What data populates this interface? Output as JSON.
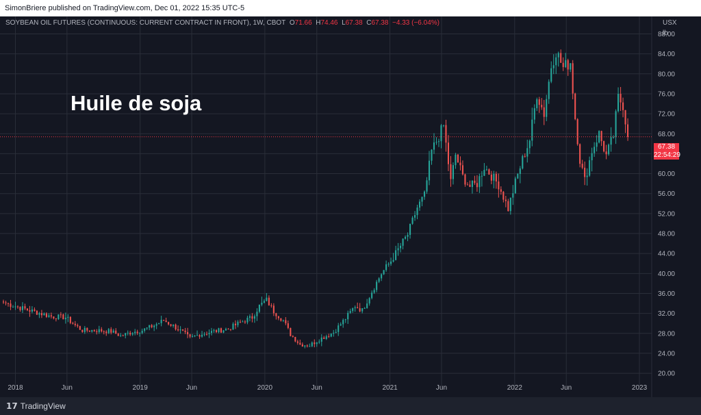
{
  "header": {
    "published": "SimonBriere published on TradingView.com, Dec 01, 2022 15:35 UTC-5"
  },
  "legend": {
    "symbol": "SOYBEAN OIL FUTURES (CONTINUOUS: CURRENT CONTRACT IN FRONT), 1W, CBOT",
    "o_label": "O",
    "o_value": "71.66",
    "h_label": "H",
    "h_value": "74.46",
    "l_label": "L",
    "l_value": "67.38",
    "c_label": "C",
    "c_value": "67.38",
    "change": "−4.33 (−6.04%)"
  },
  "annotation": "Huile de soja",
  "axis_units": {
    "currency": "USX",
    "unit": "lb"
  },
  "last_price": {
    "value": "67.38",
    "countdown": "22:54:29"
  },
  "footer": {
    "brand": "TradingView"
  },
  "colors": {
    "up": "#26a69a",
    "down": "#ef5350",
    "price_line": "#f23645",
    "background": "#141722",
    "grid": "#2a2e39"
  },
  "chart_data": {
    "type": "candlestick",
    "interval": "1W",
    "ylim": [
      18.5,
      91.5
    ],
    "y_ticks": [
      20,
      24,
      28,
      32,
      36,
      40,
      44,
      48,
      52,
      56,
      60,
      64,
      68,
      72,
      76,
      80,
      84,
      88
    ],
    "y_tick_labels": [
      "20.00",
      "24.00",
      "28.00",
      "32.00",
      "36.00",
      "40.00",
      "44.00",
      "48.00",
      "52.00",
      "56.00",
      "60.00",
      "64.00",
      "68.00",
      "72.00",
      "76.00",
      "80.00",
      "84.00",
      "88.00"
    ],
    "x_ticks": [
      "2018-01-01",
      "2018-06-01",
      "2019-01-01",
      "2019-06-01",
      "2020-01-01",
      "2020-06-01",
      "2021-01-01",
      "2021-06-01",
      "2022-01-01",
      "2022-06-01",
      "2023-01-01"
    ],
    "x_tick_labels": [
      "2018",
      "Jun",
      "2019",
      "Jun",
      "2020",
      "Jun",
      "2021",
      "Jun",
      "2022",
      "Jun",
      "2023"
    ],
    "xlim": [
      "2017-11-27",
      "2023-02-06"
    ],
    "last_close": 67.38,
    "anchors": [
      [
        "2017-11-27",
        34.2
      ],
      [
        "2017-12-25",
        33.6
      ],
      [
        "2018-01-22",
        33.0
      ],
      [
        "2018-03-05",
        32.2
      ],
      [
        "2018-04-16",
        31.4
      ],
      [
        "2018-05-28",
        31.2
      ],
      [
        "2018-06-25",
        29.6
      ],
      [
        "2018-07-16",
        28.6
      ],
      [
        "2018-08-27",
        28.6
      ],
      [
        "2018-10-08",
        28.4
      ],
      [
        "2018-11-05",
        27.5
      ],
      [
        "2018-12-10",
        28.3
      ],
      [
        "2019-01-07",
        28.6
      ],
      [
        "2019-02-11",
        29.6
      ],
      [
        "2019-03-11",
        30.6
      ],
      [
        "2019-04-08",
        29.5
      ],
      [
        "2019-05-06",
        28.2
      ],
      [
        "2019-05-27",
        27.0
      ],
      [
        "2019-06-24",
        27.8
      ],
      [
        "2019-08-05",
        28.4
      ],
      [
        "2019-09-16",
        28.9
      ],
      [
        "2019-10-21",
        30.2
      ],
      [
        "2019-11-25",
        31.2
      ],
      [
        "2019-12-16",
        33.5
      ],
      [
        "2020-01-06",
        34.7
      ],
      [
        "2020-01-27",
        32.4
      ],
      [
        "2020-02-24",
        30.6
      ],
      [
        "2020-03-16",
        27.8
      ],
      [
        "2020-04-13",
        25.8
      ],
      [
        "2020-05-11",
        25.6
      ],
      [
        "2020-06-08",
        26.8
      ],
      [
        "2020-07-20",
        28.2
      ],
      [
        "2020-08-24",
        31.0
      ],
      [
        "2020-09-21",
        33.5
      ],
      [
        "2020-10-12",
        32.6
      ],
      [
        "2020-11-09",
        36.4
      ],
      [
        "2020-12-07",
        40.0
      ],
      [
        "2021-01-04",
        42.5
      ],
      [
        "2021-01-25",
        44.8
      ],
      [
        "2021-02-22",
        47.8
      ],
      [
        "2021-03-22",
        53.2
      ],
      [
        "2021-04-12",
        55.6
      ],
      [
        "2021-05-03",
        64.5
      ],
      [
        "2021-05-24",
        67.5
      ],
      [
        "2021-06-07",
        69.6
      ],
      [
        "2021-06-28",
        58.4
      ],
      [
        "2021-07-12",
        63.8
      ],
      [
        "2021-08-02",
        59.4
      ],
      [
        "2021-08-23",
        57.4
      ],
      [
        "2021-09-13",
        58.0
      ],
      [
        "2021-10-04",
        61.4
      ],
      [
        "2021-10-25",
        59.6
      ],
      [
        "2021-11-15",
        57.8
      ],
      [
        "2021-12-13",
        53.0
      ],
      [
        "2022-01-03",
        58.2
      ],
      [
        "2022-01-24",
        62.8
      ],
      [
        "2022-02-14",
        66.8
      ],
      [
        "2022-03-07",
        76.0
      ],
      [
        "2022-03-28",
        72.0
      ],
      [
        "2022-04-18",
        81.6
      ],
      [
        "2022-05-02",
        84.6
      ],
      [
        "2022-05-23",
        81.2
      ],
      [
        "2022-06-13",
        82.4
      ],
      [
        "2022-06-27",
        71.2
      ],
      [
        "2022-07-11",
        62.8
      ],
      [
        "2022-07-25",
        58.6
      ],
      [
        "2022-08-15",
        64.6
      ],
      [
        "2022-09-05",
        68.0
      ],
      [
        "2022-09-26",
        63.6
      ],
      [
        "2022-10-17",
        67.6
      ],
      [
        "2022-10-31",
        75.2
      ],
      [
        "2022-11-14",
        73.8
      ],
      [
        "2022-11-28",
        67.38
      ]
    ]
  }
}
